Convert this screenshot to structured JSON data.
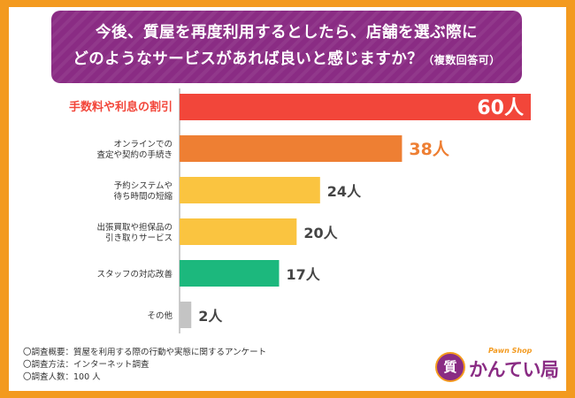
{
  "title": {
    "line1": "今後、質屋を再度利用するとしたら、店舗を選ぶ際に",
    "line2": "どのようなサービスがあれば良いと感じますか？",
    "note": "（複数回答可）"
  },
  "chart_data": {
    "type": "bar",
    "orientation": "horizontal",
    "unit": "人",
    "xlim": [
      0,
      60
    ],
    "categories": [
      [
        "手数料や利息の割引"
      ],
      [
        "オンラインでの",
        "査定や契約の手続き"
      ],
      [
        "予約システムや",
        "待ち時間の短縮"
      ],
      [
        "出張買取や担保品の",
        "引き取りサービス"
      ],
      [
        "スタッフの対応改善"
      ],
      [
        "その他"
      ]
    ],
    "values": [
      60,
      38,
      24,
      20,
      17,
      2
    ],
    "value_labels": [
      "60人",
      "38人",
      "24人",
      "20人",
      "17人",
      "2人"
    ],
    "colors": [
      "#f2463a",
      "#ee7f33",
      "#fac440",
      "#fac440",
      "#1cb87d",
      "#c4c4c4"
    ],
    "highlight_label_colors": [
      "#f2463a",
      "#ee7f33",
      "#444444",
      "#444444",
      "#444444",
      "#444444"
    ]
  },
  "footnotes": [
    "〇調査概要：質屋を利用する際の行動や実態に関するアンケート",
    "〇調査方法：インターネット調査",
    "〇調査人数：100 人"
  ],
  "logo": {
    "tagline": "Pawn Shop",
    "name": "かんてい局",
    "emblem": "質",
    "reg": "®"
  }
}
